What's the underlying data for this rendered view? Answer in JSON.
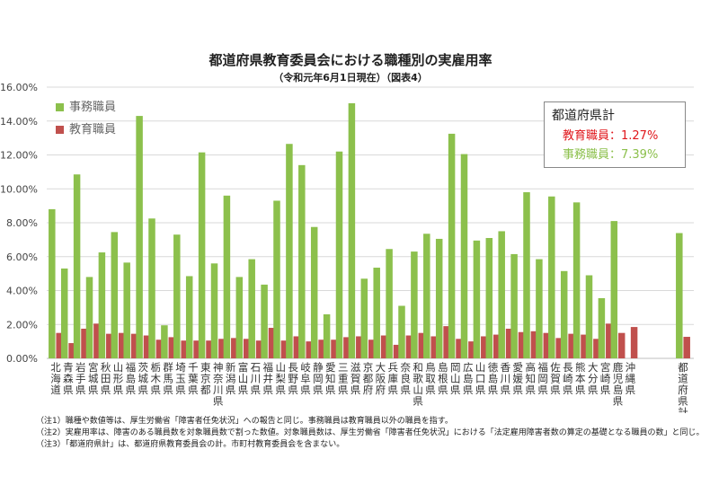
{
  "title": "都道府県教育委員会における職種別の実雇用率",
  "subtitle": "（令和元年6月1日現在）（図表4）",
  "legend": {
    "office": "事務職員",
    "teacher": "教育職員"
  },
  "summary": {
    "heading": "都道府県計",
    "teacher_line": "教育職員：1.27%",
    "office_line": "事務職員：7.39%"
  },
  "notes": [
    "（注1）職種や数値等は、厚生労働省「障害者任免状況」への報告と同じ。事務職員は教育職員以外の職員を指す。",
    "（注2）実雇用率は、障害のある職員数を対象職員数で割った数値。対象職員数は、厚生労働省「障害者任免状況」における「法定雇用障害者数の算定の基礎となる職員の数」と同じ。",
    "（注3）「都道府県計」は、都道府県教育委員会の計。市町村教育委員会を含まない。"
  ],
  "colors": {
    "office": "#8cc04c",
    "teacher": "#c0504d",
    "grid": "#d9d9d9",
    "summary_teacher": "#e0161b",
    "summary_office": "#8cc04c"
  },
  "chart_data": {
    "type": "bar",
    "ylim": [
      0,
      16
    ],
    "y_ticks": [
      "0.00%",
      "2.00%",
      "4.00%",
      "6.00%",
      "8.00%",
      "10.00%",
      "12.00%",
      "14.00%",
      "16.00%"
    ],
    "categories": [
      "北海道",
      "青森県",
      "岩手県",
      "宮城県",
      "秋田県",
      "山形県",
      "福島県",
      "茨城県",
      "栃木県",
      "群馬県",
      "埼玉県",
      "千葉県",
      "東京都",
      "神奈川県",
      "新潟県",
      "富山県",
      "石川県",
      "福井県",
      "山梨県",
      "長野県",
      "岐阜県",
      "静岡県",
      "愛知県",
      "三重県",
      "滋賀県",
      "京都府",
      "大阪府",
      "兵庫県",
      "奈良県",
      "和歌山県",
      "鳥取県",
      "島根県",
      "岡山県",
      "広島県",
      "山口県",
      "徳島県",
      "香川県",
      "愛媛県",
      "高知県",
      "福岡県",
      "佐賀県",
      "長崎県",
      "熊本県",
      "大分県",
      "宮崎県",
      "鹿児島県",
      "沖縄県",
      "都道府県計"
    ],
    "series": [
      {
        "name": "事務職員",
        "values": [
          8.8,
          5.3,
          10.85,
          4.8,
          6.25,
          7.45,
          5.65,
          14.3,
          8.25,
          1.95,
          7.3,
          4.85,
          12.15,
          5.6,
          9.6,
          4.8,
          5.85,
          4.35,
          9.3,
          12.65,
          11.4,
          7.75,
          2.6,
          12.2,
          15.05,
          4.7,
          5.35,
          6.45,
          3.1,
          6.3,
          7.35,
          7.05,
          13.25,
          12.05,
          6.95,
          7.1,
          7.5,
          6.15,
          9.8,
          5.85,
          9.55,
          5.15,
          9.2,
          4.9,
          3.55,
          8.1,
          0,
          7.39
        ]
      },
      {
        "name": "教育職員",
        "values": [
          1.5,
          0.9,
          1.75,
          2.05,
          1.45,
          1.5,
          1.45,
          1.35,
          1.1,
          1.25,
          1.05,
          1.05,
          1.05,
          1.15,
          1.2,
          1.15,
          1.05,
          1.8,
          1.05,
          1.3,
          1.0,
          1.1,
          1.1,
          1.25,
          1.3,
          1.1,
          1.35,
          0.8,
          1.35,
          1.5,
          1.3,
          1.9,
          1.15,
          1.0,
          1.3,
          1.4,
          1.75,
          1.55,
          1.6,
          1.5,
          1.2,
          1.45,
          1.4,
          1.15,
          2.05,
          1.5,
          1.85,
          1.27
        ]
      }
    ]
  }
}
